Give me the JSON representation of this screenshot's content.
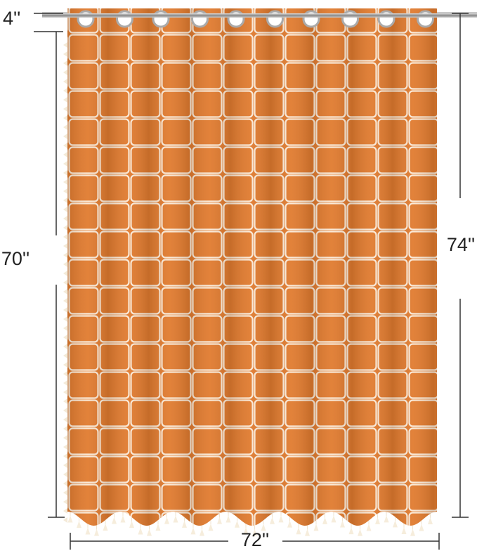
{
  "dimensions": {
    "drop_top": "4''",
    "panel_length": "70''",
    "total_length": "74''",
    "width": "72''"
  }
}
